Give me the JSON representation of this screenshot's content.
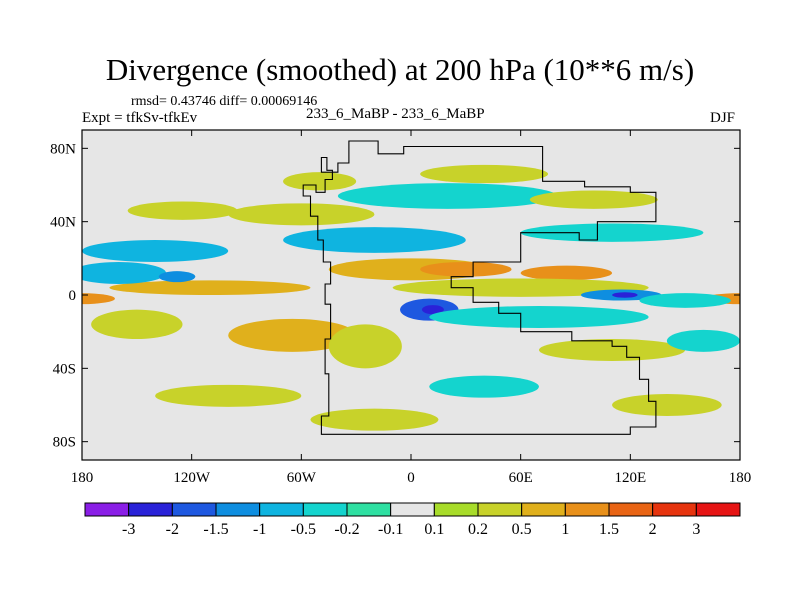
{
  "chart_data": {
    "type": "heatmap",
    "title": "Divergence (smoothed) at 200 hPa (10**6 m/s)",
    "stats_text": "rmsd= 0.43746 diff= 0.00069146",
    "experiment_text": "Expt = tfkSv-tfkEv",
    "case_text": "233_6_MaBP - 233_6_MaBP",
    "season": "DJF",
    "xlim": [
      -180,
      180
    ],
    "ylim": [
      -90,
      90
    ],
    "x_ticks": [
      {
        "value": -180,
        "label": "180"
      },
      {
        "value": -120,
        "label": "120W"
      },
      {
        "value": -60,
        "label": "60W"
      },
      {
        "value": 0,
        "label": "0"
      },
      {
        "value": 60,
        "label": "60E"
      },
      {
        "value": 120,
        "label": "120E"
      },
      {
        "value": 180,
        "label": "180"
      }
    ],
    "y_ticks": [
      {
        "value": 80,
        "label": "80N"
      },
      {
        "value": 40,
        "label": "40N"
      },
      {
        "value": 0,
        "label": "0"
      },
      {
        "value": -40,
        "label": "40S"
      },
      {
        "value": -80,
        "label": "80S"
      }
    ],
    "colorbar": {
      "levels": [
        "-3",
        "-2",
        "-1.5",
        "-1",
        "-0.5",
        "-0.2",
        "-0.1",
        "0.1",
        "0.2",
        "0.5",
        "1",
        "1.5",
        "2",
        "3"
      ],
      "colors": [
        "#8a1ee6",
        "#2a22d8",
        "#1e58e0",
        "#0e8ee0",
        "#0fb4e0",
        "#14d4ce",
        "#2fe0a2",
        "#e6e6e6",
        "#a8dc2a",
        "#c8d22a",
        "#e0b01c",
        "#e8901a",
        "#e86414",
        "#e6340e",
        "#e61414"
      ]
    },
    "features": [
      {
        "lon": -180,
        "lat": -2,
        "rx": 18,
        "ry": 3,
        "level": 1.2
      },
      {
        "lon": 180,
        "lat": -2,
        "rx": 20,
        "ry": 3,
        "level": 1.0
      },
      {
        "lon": -110,
        "lat": 4,
        "rx": 55,
        "ry": 4,
        "level": 0.6
      },
      {
        "lon": -160,
        "lat": 12,
        "rx": 26,
        "ry": 6,
        "level": -0.6
      },
      {
        "lon": -140,
        "lat": 24,
        "rx": 40,
        "ry": 6,
        "level": -0.6
      },
      {
        "lon": -128,
        "lat": 10,
        "rx": 10,
        "ry": 3,
        "level": -1.2
      },
      {
        "lon": -125,
        "lat": 46,
        "rx": 30,
        "ry": 5,
        "level": 0.3
      },
      {
        "lon": -60,
        "lat": 44,
        "rx": 40,
        "ry": 6,
        "level": 0.3
      },
      {
        "lon": -20,
        "lat": 30,
        "rx": 50,
        "ry": 7,
        "level": -0.6
      },
      {
        "lon": 20,
        "lat": 54,
        "rx": 60,
        "ry": 7,
        "level": -0.3
      },
      {
        "lon": 40,
        "lat": 66,
        "rx": 35,
        "ry": 5,
        "level": 0.3
      },
      {
        "lon": -50,
        "lat": 62,
        "rx": 20,
        "ry": 5,
        "level": 0.3
      },
      {
        "lon": 100,
        "lat": 52,
        "rx": 35,
        "ry": 5,
        "level": 0.3
      },
      {
        "lon": 110,
        "lat": 34,
        "rx": 50,
        "ry": 5,
        "level": -0.5
      },
      {
        "lon": 0,
        "lat": 14,
        "rx": 45,
        "ry": 6,
        "level": 0.9
      },
      {
        "lon": 30,
        "lat": 14,
        "rx": 25,
        "ry": 4,
        "level": 1.3
      },
      {
        "lon": 85,
        "lat": 12,
        "rx": 25,
        "ry": 4,
        "level": 1.0
      },
      {
        "lon": 60,
        "lat": 4,
        "rx": 70,
        "ry": 5,
        "level": 0.4
      },
      {
        "lon": 10,
        "lat": -8,
        "rx": 16,
        "ry": 6,
        "level": -1.6
      },
      {
        "lon": 12,
        "lat": -8,
        "rx": 6,
        "ry": 2.5,
        "level": -2.3
      },
      {
        "lon": 115,
        "lat": 0,
        "rx": 22,
        "ry": 3,
        "level": -1.5
      },
      {
        "lon": 117,
        "lat": 0,
        "rx": 7,
        "ry": 1.5,
        "level": -2.2
      },
      {
        "lon": 150,
        "lat": -3,
        "rx": 25,
        "ry": 4,
        "level": -0.5
      },
      {
        "lon": -150,
        "lat": -16,
        "rx": 25,
        "ry": 8,
        "level": 0.3
      },
      {
        "lon": -65,
        "lat": -22,
        "rx": 35,
        "ry": 9,
        "level": 0.5
      },
      {
        "lon": -25,
        "lat": -28,
        "rx": 20,
        "ry": 12,
        "level": 0.4
      },
      {
        "lon": 70,
        "lat": -12,
        "rx": 60,
        "ry": 6,
        "level": -0.4
      },
      {
        "lon": 110,
        "lat": -30,
        "rx": 40,
        "ry": 6,
        "level": 0.4
      },
      {
        "lon": 160,
        "lat": -25,
        "rx": 20,
        "ry": 6,
        "level": -0.4
      },
      {
        "lon": 40,
        "lat": -50,
        "rx": 30,
        "ry": 6,
        "level": -0.4
      },
      {
        "lon": -100,
        "lat": -55,
        "rx": 40,
        "ry": 6,
        "level": 0.3
      },
      {
        "lon": -20,
        "lat": -68,
        "rx": 35,
        "ry": 6,
        "level": 0.3
      },
      {
        "lon": 140,
        "lat": -60,
        "rx": 30,
        "ry": 6,
        "level": 0.3
      }
    ],
    "continent_outline": [
      [
        -49,
        67
      ],
      [
        -49,
        75
      ],
      [
        -46,
        75
      ],
      [
        -46,
        68
      ],
      [
        -43,
        68
      ],
      [
        -43,
        63
      ],
      [
        -47,
        63
      ],
      [
        -47,
        56
      ],
      [
        -52,
        56
      ],
      [
        -52,
        60
      ],
      [
        -59,
        60
      ],
      [
        -59,
        54
      ],
      [
        -55,
        54
      ],
      [
        -55,
        43
      ],
      [
        -51,
        43
      ],
      [
        -51,
        30
      ],
      [
        -48,
        30
      ],
      [
        -48,
        18
      ],
      [
        -44,
        18
      ],
      [
        -44,
        6
      ],
      [
        -47,
        6
      ],
      [
        -47,
        -5
      ],
      [
        -44,
        -5
      ],
      [
        -44,
        -24
      ],
      [
        -47,
        -24
      ],
      [
        -47,
        -43
      ],
      [
        -45,
        -43
      ],
      [
        -45,
        -66
      ],
      [
        -49,
        -66
      ],
      [
        -49,
        -76
      ],
      [
        120,
        -76
      ],
      [
        120,
        -72
      ],
      [
        134,
        -72
      ],
      [
        134,
        -58
      ],
      [
        130,
        -58
      ],
      [
        130,
        -46
      ],
      [
        125,
        -46
      ],
      [
        125,
        -34
      ],
      [
        118,
        -34
      ],
      [
        118,
        -28
      ],
      [
        110,
        -28
      ],
      [
        110,
        -25
      ],
      [
        88,
        -25
      ],
      [
        88,
        -20
      ],
      [
        60,
        -20
      ],
      [
        60,
        -10
      ],
      [
        48,
        -10
      ],
      [
        48,
        -4
      ],
      [
        34,
        -4
      ],
      [
        34,
        4
      ],
      [
        22,
        4
      ],
      [
        22,
        10
      ],
      [
        34,
        10
      ],
      [
        34,
        18
      ],
      [
        60,
        18
      ],
      [
        60,
        34
      ],
      [
        92,
        34
      ],
      [
        92,
        30
      ],
      [
        102,
        30
      ],
      [
        102,
        40
      ],
      [
        134,
        40
      ],
      [
        134,
        56
      ],
      [
        120,
        56
      ],
      [
        120,
        59
      ],
      [
        95,
        59
      ],
      [
        95,
        62
      ],
      [
        72,
        62
      ],
      [
        72,
        81
      ],
      [
        -4,
        81
      ],
      [
        -4,
        77
      ],
      [
        -18,
        77
      ],
      [
        -18,
        84
      ],
      [
        -34,
        84
      ],
      [
        -34,
        72
      ],
      [
        -40,
        72
      ],
      [
        -40,
        67
      ],
      [
        -49,
        67
      ]
    ]
  }
}
